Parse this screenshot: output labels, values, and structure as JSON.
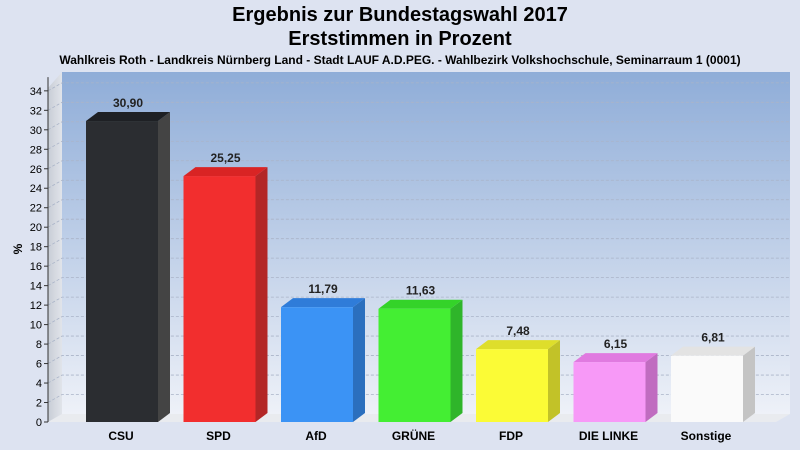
{
  "page": {
    "title_line1": "Ergebnis zur Bundestagswahl 2017",
    "title_line2": "Erststimmen in Prozent",
    "subtitle": "Wahlkreis Roth - Landkreis Nürnberg Land - Stadt LAUF A.D.PEG. - Wahlbezirk Volkshochschule, Seminarraum 1 (0001)"
  },
  "chart_data": {
    "type": "bar",
    "ylabel": "%",
    "ylim": [
      0,
      35
    ],
    "ytick_step": 2,
    "categories": [
      "CSU",
      "SPD",
      "AfD",
      "GRÜNE",
      "FDP",
      "DIE LINKE",
      "Sonstige"
    ],
    "values": [
      30.9,
      25.25,
      11.79,
      11.63,
      7.48,
      6.15,
      6.81
    ],
    "value_labels": [
      "30,90",
      "25,25",
      "11,79",
      "11,63",
      "7,48",
      "6,15",
      "6,81"
    ],
    "colors": [
      "#2b2d31",
      "#f22e2e",
      "#3b93f5",
      "#44ee33",
      "#fbfb36",
      "#f799f7",
      "#fafafa"
    ],
    "side_colors": [
      "#444444",
      "#b32626",
      "#2b6fbe",
      "#2fb52a",
      "#c2c228",
      "#c06cc0",
      "#c4c4c4"
    ],
    "top_colors": [
      "#1e2024",
      "#d92424",
      "#2f7cd9",
      "#34d329",
      "#dede2b",
      "#e07ae0",
      "#e3e3e3"
    ],
    "grid": true
  }
}
